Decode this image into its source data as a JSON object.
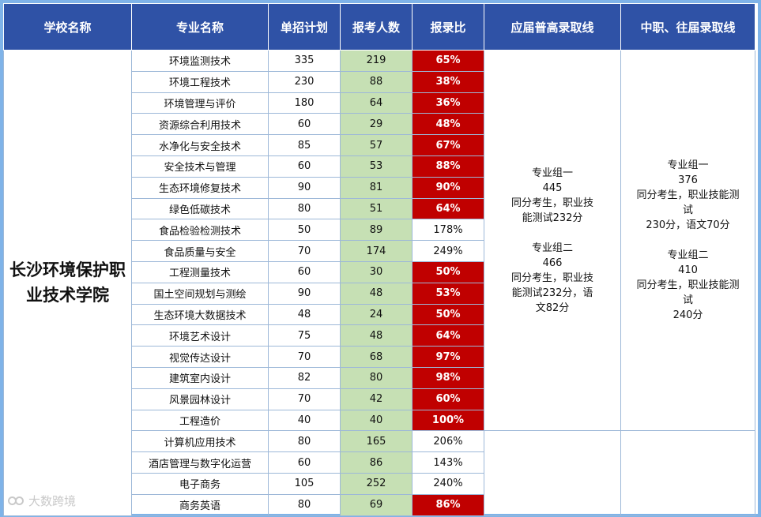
{
  "headers": [
    "学校名称",
    "专业名称",
    "单招计划",
    "报考人数",
    "报录比",
    "应届普高录取线",
    "中职、往届录取线"
  ],
  "school": "长沙环境保护职业技术学院",
  "rows": [
    {
      "major": "环境监测技术",
      "plan": "335",
      "applicants": "219",
      "ratio": "65%",
      "hot": true
    },
    {
      "major": "环境工程技术",
      "plan": "230",
      "applicants": "88",
      "ratio": "38%",
      "hot": true
    },
    {
      "major": "环境管理与评价",
      "plan": "180",
      "applicants": "64",
      "ratio": "36%",
      "hot": true
    },
    {
      "major": "资源综合利用技术",
      "plan": "60",
      "applicants": "29",
      "ratio": "48%",
      "hot": true
    },
    {
      "major": "水净化与安全技术",
      "plan": "85",
      "applicants": "57",
      "ratio": "67%",
      "hot": true
    },
    {
      "major": "安全技术与管理",
      "plan": "60",
      "applicants": "53",
      "ratio": "88%",
      "hot": true
    },
    {
      "major": "生态环境修复技术",
      "plan": "90",
      "applicants": "81",
      "ratio": "90%",
      "hot": true
    },
    {
      "major": "绿色低碳技术",
      "plan": "80",
      "applicants": "51",
      "ratio": "64%",
      "hot": true
    },
    {
      "major": "食品检验检测技术",
      "plan": "50",
      "applicants": "89",
      "ratio": "178%",
      "hot": false
    },
    {
      "major": "食品质量与安全",
      "plan": "70",
      "applicants": "174",
      "ratio": "249%",
      "hot": false
    },
    {
      "major": "工程测量技术",
      "plan": "60",
      "applicants": "30",
      "ratio": "50%",
      "hot": true
    },
    {
      "major": "国土空间规划与测绘",
      "plan": "90",
      "applicants": "48",
      "ratio": "53%",
      "hot": true
    },
    {
      "major": "生态环境大数据技术",
      "plan": "48",
      "applicants": "24",
      "ratio": "50%",
      "hot": true
    },
    {
      "major": "环境艺术设计",
      "plan": "75",
      "applicants": "48",
      "ratio": "64%",
      "hot": true
    },
    {
      "major": "视觉传达设计",
      "plan": "70",
      "applicants": "68",
      "ratio": "97%",
      "hot": true
    },
    {
      "major": "建筑室内设计",
      "plan": "82",
      "applicants": "80",
      "ratio": "98%",
      "hot": true
    },
    {
      "major": "风景园林设计",
      "plan": "70",
      "applicants": "42",
      "ratio": "60%",
      "hot": true
    },
    {
      "major": "工程造价",
      "plan": "40",
      "applicants": "40",
      "ratio": "100%",
      "hot": true
    },
    {
      "major": "计算机应用技术",
      "plan": "80",
      "applicants": "165",
      "ratio": "206%",
      "hot": false
    },
    {
      "major": "酒店管理与数字化运营",
      "plan": "60",
      "applicants": "86",
      "ratio": "143%",
      "hot": false
    },
    {
      "major": "电子商务",
      "plan": "105",
      "applicants": "252",
      "ratio": "240%",
      "hot": false
    },
    {
      "major": "商务英语",
      "plan": "80",
      "applicants": "69",
      "ratio": "86%",
      "hot": true
    }
  ],
  "gaokao_line": {
    "group1_title": "专业组一",
    "group1_score": "445",
    "group1_tie_a": "同分考生，职业技",
    "group1_tie_b": "能测试232分",
    "group2_title": "专业组二",
    "group2_score": "466",
    "group2_tie_a": "同分考生，职业技",
    "group2_tie_b": "能测试232分，语",
    "group2_tie_c": "文82分"
  },
  "vocational_line": {
    "group1_title": "专业组一",
    "group1_score": "376",
    "group1_tie_a": "同分考生，职业技能测试",
    "group1_tie_b": "230分，语文70分",
    "group2_title": "专业组二",
    "group2_score": "410",
    "group2_tie_a": "同分考生，职业技能测试",
    "group2_tie_b": "240分"
  },
  "watermark": "大数跨境",
  "colors": {
    "header_bg": "#2f52a6",
    "applicants_bg": "#c6e0b4",
    "ratio_hot_bg": "#c00000",
    "frame": "#7fb3e8"
  }
}
